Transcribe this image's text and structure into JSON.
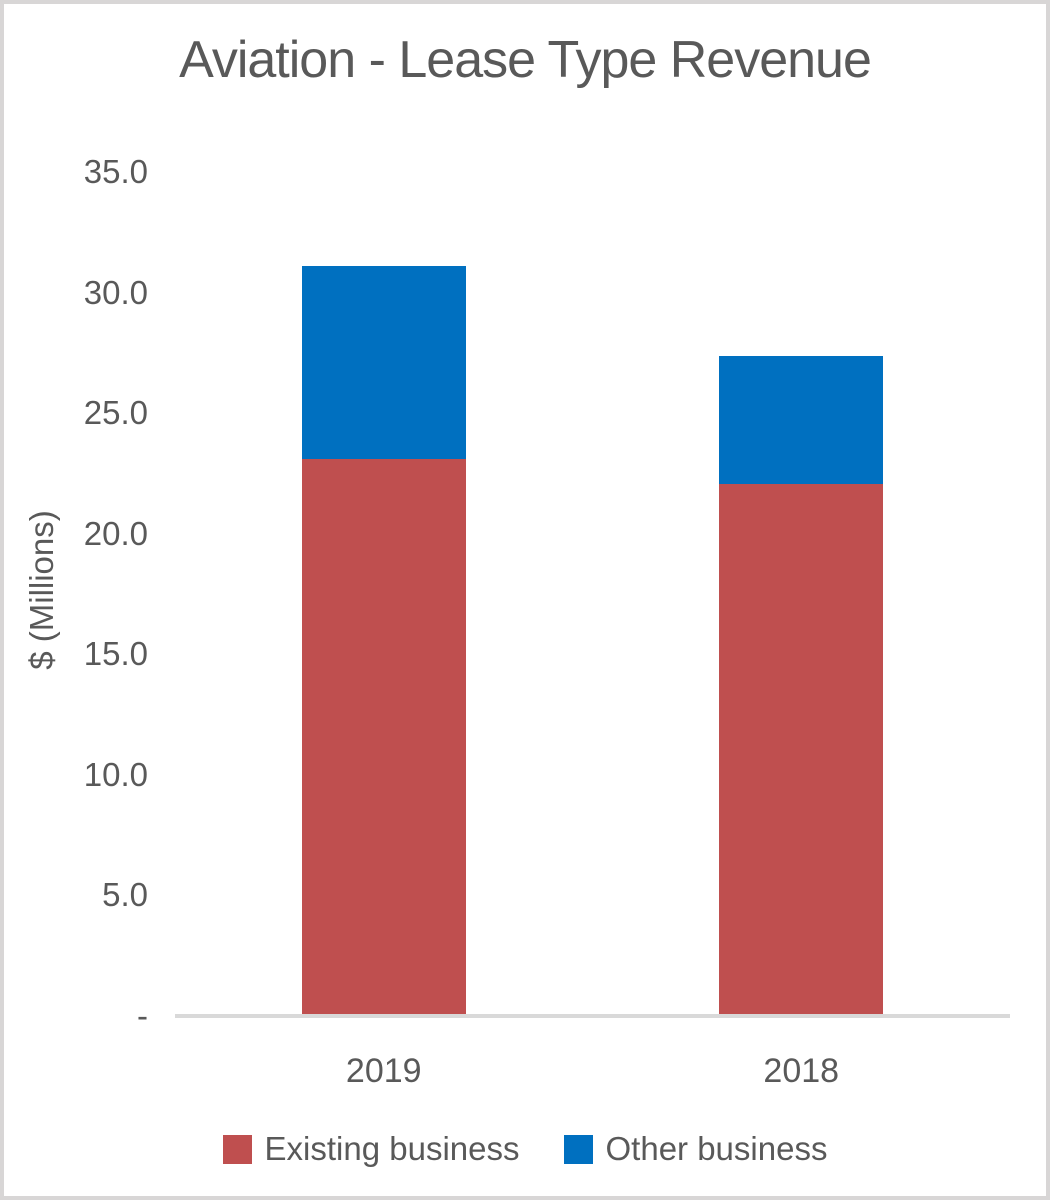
{
  "chart_data": {
    "type": "bar",
    "stacked": true,
    "title": "Aviation - Lease Type Revenue",
    "xlabel": "",
    "ylabel": "$ (Millions)",
    "categories": [
      "2019",
      "2018"
    ],
    "series": [
      {
        "name": "Existing business",
        "color": "#bf4f4f",
        "values": [
          23.0,
          22.0
        ]
      },
      {
        "name": "Other business",
        "color": "#0070c0",
        "values": [
          8.0,
          5.3
        ]
      }
    ],
    "totals": [
      31.0,
      27.3
    ],
    "ylim": [
      0,
      35
    ],
    "ytick_interval": 5,
    "ytick_labels": [
      "-",
      "5.0",
      "10.0",
      "15.0",
      "20.0",
      "25.0",
      "30.0",
      "35.0"
    ],
    "grid": false,
    "legend_position": "bottom",
    "axis_line_color": "#d9d9d9",
    "text_color": "#595959",
    "background_color": "#ffffff",
    "border_color": "#d8d6d6"
  }
}
